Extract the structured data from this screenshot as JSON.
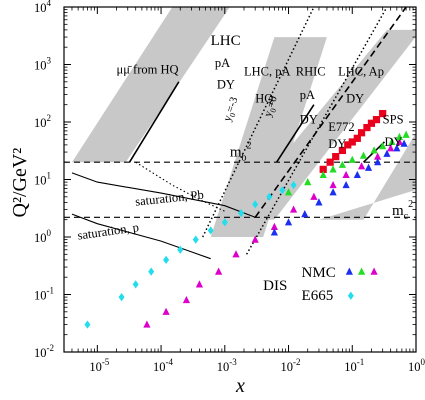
{
  "chart_data": {
    "type": "scatter",
    "xlabel": "x",
    "ylabel": "Q²/GeV²",
    "xscale": "log",
    "yscale": "log",
    "xlim": [
      3e-06,
      1
    ],
    "ylim": [
      0.01,
      10000
    ],
    "x_ticks": [
      {
        "v": 1e-05,
        "base": "10",
        "exp": "-5"
      },
      {
        "v": 0.0001,
        "base": "10",
        "exp": "-4"
      },
      {
        "v": 0.001,
        "base": "10",
        "exp": "-3"
      },
      {
        "v": 0.01,
        "base": "10",
        "exp": "-2"
      },
      {
        "v": 0.1,
        "base": "10",
        "exp": "-1"
      },
      {
        "v": 1,
        "base": "10",
        "exp": "0"
      }
    ],
    "y_ticks": [
      {
        "v": 0.01,
        "base": "10",
        "exp": "-2"
      },
      {
        "v": 0.1,
        "base": "10",
        "exp": "-1"
      },
      {
        "v": 1,
        "base": "10",
        "exp": "0"
      },
      {
        "v": 10,
        "base": "10",
        "exp": "1"
      },
      {
        "v": 100,
        "base": "10",
        "exp": "2"
      },
      {
        "v": 1000,
        "base": "10",
        "exp": "3"
      },
      {
        "v": 10000,
        "base": "10",
        "exp": "4"
      }
    ],
    "thresholds": [
      {
        "y": 20,
        "label": "m",
        "sub": "b",
        "sup": "2",
        "lx": 0.0012,
        "ly": 25
      },
      {
        "y": 2.2,
        "label": "m",
        "sub": "c",
        "sup": "2",
        "lx": 0.42,
        "ly": 2.4
      }
    ],
    "bands": [
      {
        "name": "lhc-hq",
        "points": [
          [
            4e-06,
            20
          ],
          [
            2.8e-05,
            20
          ],
          [
            0.0012,
            10000
          ],
          [
            0.00015,
            10000
          ]
        ]
      },
      {
        "name": "lhc-pa-hq",
        "points": [
          [
            0.0006,
            1
          ],
          [
            0.004,
            1
          ],
          [
            0.04,
            3000
          ],
          [
            0.006,
            3000
          ]
        ]
      },
      {
        "name": "rhic-pa",
        "points": [
          [
            0.0012,
            2
          ],
          [
            0.006,
            2
          ],
          [
            1.2,
            4000
          ],
          [
            0.35,
            4000
          ]
        ]
      },
      {
        "name": "lhc-ap",
        "points": [
          [
            0.03,
            2
          ],
          [
            0.15,
            2
          ],
          [
            1.2,
            90
          ],
          [
            1.2,
            7
          ]
        ]
      }
    ],
    "dy_lines": [
      {
        "name": "lhc-line",
        "points": [
          [
            3.2e-05,
            20
          ],
          [
            0.00019,
            500
          ]
        ]
      },
      {
        "name": "rhic-line",
        "points": [
          [
            0.0065,
            20
          ],
          [
            0.025,
            200
          ]
        ]
      },
      {
        "name": "sps-line",
        "points": [
          [
            0.15,
            20
          ],
          [
            0.32,
            45
          ]
        ]
      }
    ],
    "dotted_lines": [
      {
        "name": "y0-3",
        "points": [
          [
            0.00045,
            1
          ],
          [
            0.025,
            10000
          ]
        ]
      },
      {
        "name": "y0-0",
        "points": [
          [
            0.0022,
            0.5
          ],
          [
            0.35,
            10000
          ]
        ]
      }
    ],
    "dashed_line": {
      "name": "dis-boundary",
      "points": [
        [
          0.003,
          2.2
        ],
        [
          0.7,
          10000
        ]
      ]
    },
    "saturation_curves": [
      {
        "name": "saturation-pb",
        "points": [
          [
            4e-06,
            13
          ],
          [
            1e-05,
            9
          ],
          [
            0.0001,
            5.8
          ],
          [
            0.001,
            3.5
          ],
          [
            0.003,
            2.2
          ]
        ]
      },
      {
        "name": "saturation-p",
        "points": [
          [
            4e-06,
            2.5
          ],
          [
            1e-05,
            1.7
          ],
          [
            0.0001,
            0.85
          ],
          [
            0.0003,
            0.55
          ],
          [
            0.0006,
            0.42
          ]
        ]
      },
      {
        "name": "saturation-dotted",
        "points": [
          [
            4e-05,
            20
          ],
          [
            0.00015,
            8
          ],
          [
            0.0004,
            4.5
          ],
          [
            0.001,
            2.8
          ]
        ]
      }
    ],
    "series": [
      {
        "name": "E772",
        "color": "#e8001c",
        "marker": "square",
        "points": [
          [
            0.035,
            15
          ],
          [
            0.045,
            20
          ],
          [
            0.055,
            25
          ],
          [
            0.07,
            32
          ],
          [
            0.085,
            40
          ],
          [
            0.1,
            45
          ],
          [
            0.12,
            52
          ],
          [
            0.14,
            65
          ],
          [
            0.17,
            80
          ],
          [
            0.2,
            95
          ],
          [
            0.24,
            110
          ],
          [
            0.3,
            140
          ]
        ]
      },
      {
        "name": "NMC-magenta",
        "color": "#dd00cc",
        "marker": "triangle",
        "points": [
          [
            6e-05,
            0.03
          ],
          [
            0.00012,
            0.05
          ],
          [
            0.00025,
            0.08
          ],
          [
            0.0004,
            0.15
          ],
          [
            0.0008,
            0.25
          ],
          [
            0.0015,
            0.5
          ],
          [
            0.003,
            0.9
          ],
          [
            0.006,
            1.5
          ],
          [
            0.012,
            3
          ],
          [
            0.025,
            5
          ],
          [
            0.05,
            8
          ],
          [
            0.08,
            12
          ],
          [
            0.14,
            17
          ],
          [
            0.25,
            25
          ],
          [
            0.4,
            35
          ],
          [
            0.55,
            45
          ]
        ]
      },
      {
        "name": "NMC-blue",
        "color": "#1a2ff0",
        "marker": "triangle",
        "points": [
          [
            0.006,
            1.2
          ],
          [
            0.01,
            1.8
          ],
          [
            0.018,
            2.5
          ],
          [
            0.03,
            4
          ],
          [
            0.05,
            6
          ],
          [
            0.08,
            8
          ],
          [
            0.12,
            12
          ],
          [
            0.18,
            16
          ],
          [
            0.25,
            20
          ],
          [
            0.35,
            28
          ],
          [
            0.5,
            35
          ],
          [
            0.65,
            42
          ]
        ]
      },
      {
        "name": "NMC-green",
        "color": "#22dd22",
        "marker": "triangle",
        "points": [
          [
            0.01,
            6
          ],
          [
            0.02,
            9
          ],
          [
            0.035,
            12
          ],
          [
            0.05,
            15
          ],
          [
            0.07,
            18
          ],
          [
            0.1,
            22
          ],
          [
            0.15,
            26
          ],
          [
            0.22,
            32
          ],
          [
            0.3,
            38
          ],
          [
            0.42,
            45
          ],
          [
            0.55,
            55
          ],
          [
            0.7,
            60
          ]
        ]
      },
      {
        "name": "E665",
        "color": "#22ddee",
        "marker": "diamond",
        "points": [
          [
            7e-06,
            0.03
          ],
          [
            2.4e-05,
            0.09
          ],
          [
            4e-05,
            0.15
          ],
          [
            7e-05,
            0.25
          ],
          [
            0.00012,
            0.4
          ],
          [
            0.0002,
            0.6
          ],
          [
            0.00035,
            0.9
          ],
          [
            0.0006,
            1.3
          ],
          [
            0.001,
            1.8
          ],
          [
            0.0018,
            2.6
          ],
          [
            0.003,
            3.7
          ],
          [
            0.005,
            5
          ],
          [
            0.008,
            6.5
          ],
          [
            0.012,
            8
          ]
        ]
      }
    ],
    "annotations": [
      {
        "text": "LHC",
        "x": 0.0006,
        "y": 2200,
        "size": "lg"
      },
      {
        "text": "pA",
        "x": 0.0007,
        "y": 900,
        "size": "md"
      },
      {
        "text": "DY",
        "x": 0.00075,
        "y": 380,
        "size": "md"
      },
      {
        "text": "μμ̄ from HQ",
        "x": 2e-05,
        "y": 700,
        "size": "md"
      },
      {
        "text": "LHC, pA",
        "x": 0.002,
        "y": 650,
        "size": "md"
      },
      {
        "text": "HQ",
        "x": 0.003,
        "y": 220,
        "size": "md"
      },
      {
        "text": "RHIC",
        "x": 0.013,
        "y": 650,
        "size": "md"
      },
      {
        "text": "pA",
        "x": 0.015,
        "y": 250,
        "size": "md"
      },
      {
        "text": "DY",
        "x": 0.015,
        "y": 95,
        "size": "md"
      },
      {
        "text": "LHC, Ap",
        "x": 0.06,
        "y": 650,
        "size": "md"
      },
      {
        "text": "DY",
        "x": 0.08,
        "y": 220,
        "size": "md"
      },
      {
        "text": "E772",
        "x": 0.042,
        "y": 70,
        "size": "md"
      },
      {
        "text": "DY",
        "x": 0.042,
        "y": 35,
        "size": "md"
      },
      {
        "text": "SPS",
        "x": 0.3,
        "y": 95,
        "size": "md"
      },
      {
        "text": "DY",
        "x": 0.32,
        "y": 38,
        "size": "md"
      },
      {
        "text": "y",
        "sub": "0",
        "rest": "=-3",
        "x": 0.0012,
        "y": 100,
        "rot": -72,
        "size": "sm"
      },
      {
        "text": "y",
        "sub": "0",
        "rest": "=0",
        "x": 0.0052,
        "y": 120,
        "rot": -72,
        "size": "sm"
      },
      {
        "text": "saturation, Pb",
        "x": 4e-05,
        "y": 3.5,
        "rot": -6,
        "size": "md"
      },
      {
        "text": "saturation, p",
        "x": 5e-06,
        "y": 0.9,
        "rot": -8,
        "size": "md"
      },
      {
        "text": "DIS",
        "x": 0.004,
        "y": 0.12,
        "size": "lg"
      },
      {
        "text": "NMC",
        "x": 0.016,
        "y": 0.2,
        "size": "lg"
      },
      {
        "text": "E665",
        "x": 0.016,
        "y": 0.08,
        "size": "lg"
      }
    ],
    "legend_marks": [
      {
        "x": 0.09,
        "y": 0.25,
        "color": "#1a2ff0",
        "marker": "triangle"
      },
      {
        "x": 0.14,
        "y": 0.25,
        "color": "#22dd22",
        "marker": "triangle"
      },
      {
        "x": 0.22,
        "y": 0.25,
        "color": "#dd00cc",
        "marker": "triangle"
      },
      {
        "x": 0.095,
        "y": 0.095,
        "color": "#22ddee",
        "marker": "diamond"
      }
    ]
  }
}
